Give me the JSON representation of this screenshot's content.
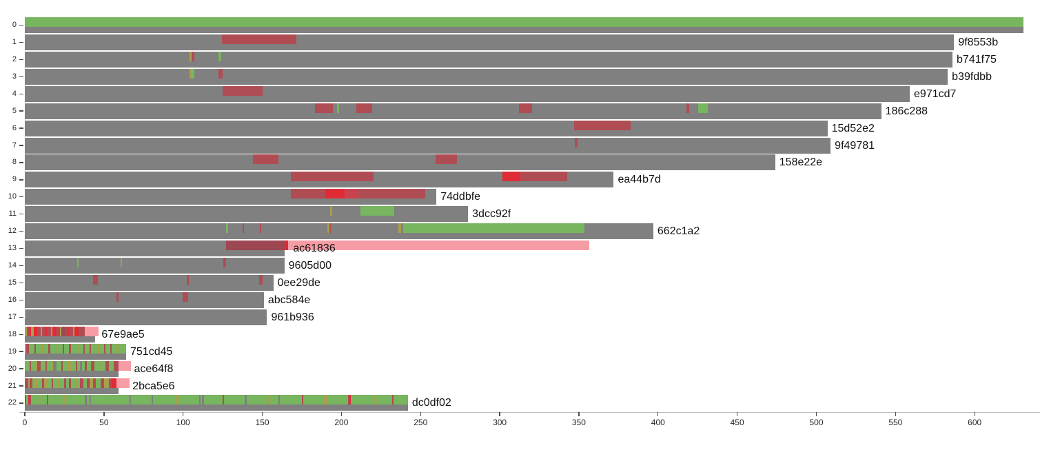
{
  "colors": {
    "gray": "#808080",
    "gray2": "#808080",
    "green": "#77b55f",
    "red": "#b04c53",
    "crimson": "#df2b36",
    "medred": "#c8434e",
    "darkred": "#9c4751",
    "pink": "#f69ca5",
    "olive": "#a89e4b",
    "label_text": "#111111",
    "tick_text": "#262626",
    "axis_line": "#bdbdbd",
    "tick_mark": "#4d4d4d"
  },
  "chart_data": {
    "type": "bar",
    "orientation": "horizontal",
    "title": "",
    "xlabel": "",
    "ylabel": "",
    "x_axis": {
      "ticks": [
        0,
        50,
        100,
        150,
        200,
        250,
        300,
        350,
        400,
        450,
        500,
        550,
        600
      ],
      "min": 0,
      "max": 641
    },
    "y_axis": {
      "tick_labels": [
        "0",
        "1",
        "2",
        "3",
        "4",
        "5",
        "6",
        "7",
        "8",
        "9",
        "10",
        "11",
        "12",
        "13",
        "14",
        "15",
        "16",
        "17",
        "18",
        "19",
        "20",
        "21",
        "22"
      ]
    },
    "legend": "none",
    "grid": false,
    "rows": [
      {
        "tick": "0",
        "commit": "",
        "length": 631,
        "segments": [
          [
            0,
            631,
            "green"
          ]
        ]
      },
      {
        "tick": "1",
        "commit": "9f8553b",
        "length": 587,
        "segments": [
          [
            124.5,
            171.5,
            "red"
          ]
        ]
      },
      {
        "tick": "2",
        "commit": "b741f75",
        "length": 586,
        "segments": [
          [
            104,
            105.5,
            "olive"
          ],
          [
            105.5,
            107,
            "red"
          ],
          [
            122.5,
            124,
            "green"
          ]
        ]
      },
      {
        "tick": "3",
        "commit": "b39fdbb",
        "length": 583,
        "segments": [
          [
            104,
            105.3,
            "olive"
          ],
          [
            105.3,
            107,
            "green"
          ],
          [
            122.5,
            125,
            "red"
          ]
        ]
      },
      {
        "tick": "4",
        "commit": "e971cd7",
        "length": 559,
        "segments": [
          [
            125,
            150,
            "red"
          ]
        ]
      },
      {
        "tick": "5",
        "commit": "186c288",
        "length": 541,
        "segments": [
          [
            183.5,
            194.5,
            "red"
          ],
          [
            197,
            198.5,
            "green"
          ],
          [
            209.5,
            219.5,
            "red"
          ],
          [
            312,
            320.5,
            "red"
          ],
          [
            418,
            419.5,
            "red"
          ],
          [
            425.5,
            431.5,
            "green"
          ]
        ]
      },
      {
        "tick": "6",
        "commit": "15d52e2",
        "length": 507,
        "segments": [
          [
            347,
            382.5,
            "red"
          ]
        ]
      },
      {
        "tick": "7",
        "commit": "9f49781",
        "length": 509,
        "segments": [
          [
            347.5,
            349,
            "red"
          ]
        ]
      },
      {
        "tick": "8",
        "commit": "158e22e",
        "length": 474,
        "segments": [
          [
            144,
            160,
            "red"
          ],
          [
            259.5,
            273,
            "red"
          ]
        ]
      },
      {
        "tick": "9",
        "commit": "ea44b7d",
        "length": 372,
        "segments": [
          [
            168,
            220.5,
            "red"
          ],
          [
            301.5,
            313,
            "crimson"
          ],
          [
            313,
            342.5,
            "red"
          ]
        ]
      },
      {
        "tick": "10",
        "commit": "74ddbfe",
        "length": 260,
        "segments": [
          [
            168,
            253,
            "red"
          ],
          [
            190,
            202,
            "crimson"
          ],
          [
            202,
            210,
            "medred"
          ]
        ]
      },
      {
        "tick": "11",
        "commit": "3dcc92f",
        "length": 280,
        "segments": [
          [
            193,
            194,
            "olive"
          ],
          [
            212,
            233.5,
            "green"
          ]
        ]
      },
      {
        "tick": "12",
        "commit": "662c1a2",
        "length": 397,
        "segments": [
          [
            127,
            128.5,
            "green"
          ],
          [
            137.5,
            138.5,
            "red"
          ],
          [
            148.5,
            149.5,
            "red"
          ],
          [
            191,
            192.5,
            "olive"
          ],
          [
            192.5,
            193.5,
            "red"
          ],
          [
            236,
            237.5,
            "olive"
          ],
          [
            239,
            353.5,
            "green"
          ]
        ]
      },
      {
        "tick": "13",
        "commit": "ac61836",
        "length": 164,
        "label_u": 169.5,
        "segments": [
          [
            127,
            164,
            "darkred"
          ],
          [
            164,
            166.5,
            "crimson"
          ],
          [
            166.5,
            356.5,
            "pink"
          ]
        ]
      },
      {
        "tick": "14",
        "commit": "9605d00",
        "length": 164,
        "segments": [
          [
            33,
            34,
            "green"
          ],
          [
            60.5,
            61.5,
            "green"
          ],
          [
            125.5,
            127,
            "red"
          ]
        ]
      },
      {
        "tick": "15",
        "commit": "0ee29de",
        "length": 157,
        "segments": [
          [
            43,
            46,
            "red"
          ],
          [
            102.5,
            103.5,
            "red"
          ],
          [
            148,
            150,
            "red"
          ]
        ]
      },
      {
        "tick": "16",
        "commit": "abc584e",
        "length": 151,
        "segments": [
          [
            58,
            59,
            "red"
          ],
          [
            99.5,
            103,
            "red"
          ]
        ]
      },
      {
        "tick": "17",
        "commit": "961b936",
        "length": 153,
        "segments": [
          [
            0,
            1,
            "green"
          ]
        ]
      },
      {
        "tick": "18",
        "commit": "67e9ae5",
        "length": 44.5,
        "label_u": 48.5,
        "segments": [
          [
            0,
            1.5,
            "olive"
          ],
          [
            1.5,
            3,
            "red"
          ],
          [
            3,
            4,
            "crimson"
          ],
          [
            4,
            5.5,
            "olive"
          ],
          [
            5.5,
            8,
            "crimson"
          ],
          [
            8,
            10,
            "red"
          ],
          [
            10,
            11,
            "olive"
          ],
          [
            11,
            13,
            "red"
          ],
          [
            13,
            14,
            "crimson"
          ],
          [
            14,
            16.5,
            "red"
          ],
          [
            16.5,
            17.5,
            "olive"
          ],
          [
            17.5,
            20,
            "crimson"
          ],
          [
            20,
            22,
            "red"
          ],
          [
            22,
            23,
            "olive"
          ],
          [
            23,
            25.5,
            "darkred"
          ],
          [
            25.5,
            27,
            "red"
          ],
          [
            27,
            28,
            "crimson"
          ],
          [
            28,
            30.5,
            "red"
          ],
          [
            30.5,
            31.5,
            "olive"
          ],
          [
            31.5,
            34,
            "crimson"
          ],
          [
            34,
            38,
            "red"
          ],
          [
            38,
            46.5,
            "pink"
          ]
        ]
      },
      {
        "tick": "19",
        "commit": "751cd45",
        "length": 64,
        "segments": [
          [
            0,
            1,
            "olive"
          ],
          [
            1,
            2.5,
            "red"
          ],
          [
            2.5,
            6,
            "green"
          ],
          [
            6,
            7,
            "red"
          ],
          [
            7,
            11,
            "green"
          ],
          [
            11,
            12,
            "olive"
          ],
          [
            12,
            15,
            "green"
          ],
          [
            15,
            16,
            "red"
          ],
          [
            16,
            19,
            "green"
          ],
          [
            19,
            20,
            "olive"
          ],
          [
            20,
            24,
            "green"
          ],
          [
            24,
            25,
            "red"
          ],
          [
            25,
            28,
            "green"
          ],
          [
            28,
            29,
            "red"
          ],
          [
            29,
            33,
            "green"
          ],
          [
            33,
            34,
            "olive"
          ],
          [
            34,
            37,
            "green"
          ],
          [
            37,
            38,
            "red"
          ],
          [
            38,
            41,
            "green"
          ],
          [
            41,
            42,
            "red"
          ],
          [
            42,
            46,
            "green"
          ],
          [
            46,
            47,
            "olive"
          ],
          [
            47,
            50,
            "green"
          ],
          [
            50,
            51,
            "red"
          ],
          [
            51,
            54,
            "green"
          ],
          [
            54,
            55,
            "red"
          ],
          [
            55,
            58,
            "green"
          ],
          [
            58,
            59,
            "olive"
          ],
          [
            59,
            64,
            "green"
          ]
        ]
      },
      {
        "tick": "20",
        "commit": "ace64f8",
        "length": 59,
        "label_u": 69,
        "segments": [
          [
            0,
            3,
            "green"
          ],
          [
            3,
            4,
            "red"
          ],
          [
            4,
            7,
            "green"
          ],
          [
            7,
            8,
            "olive"
          ],
          [
            8,
            10,
            "red"
          ],
          [
            10,
            13,
            "green"
          ],
          [
            13,
            14,
            "red"
          ],
          [
            14,
            17,
            "green"
          ],
          [
            17,
            18,
            "olive"
          ],
          [
            20,
            23,
            "green"
          ],
          [
            23,
            24,
            "red"
          ],
          [
            24,
            27,
            "green"
          ],
          [
            27,
            29,
            "olive"
          ],
          [
            29,
            32,
            "green"
          ],
          [
            32,
            33,
            "red"
          ],
          [
            33,
            35,
            "green"
          ],
          [
            36,
            38,
            "green"
          ],
          [
            38,
            39,
            "red"
          ],
          [
            39,
            42,
            "green"
          ],
          [
            42,
            44,
            "red"
          ],
          [
            44,
            47,
            "green"
          ],
          [
            47,
            48,
            "olive"
          ],
          [
            48,
            51,
            "green"
          ],
          [
            51,
            53,
            "red"
          ],
          [
            53,
            56,
            "green"
          ],
          [
            56,
            59,
            "red"
          ],
          [
            59,
            67,
            "pink"
          ]
        ]
      },
      {
        "tick": "21",
        "commit": "2bca5e6",
        "length": 59,
        "label_u": 68,
        "segments": [
          [
            0,
            2,
            "red"
          ],
          [
            2,
            3,
            "olive"
          ],
          [
            3,
            5,
            "red"
          ],
          [
            5,
            6,
            "green"
          ],
          [
            6,
            8,
            "olive"
          ],
          [
            8,
            11,
            "green"
          ],
          [
            11,
            12,
            "red"
          ],
          [
            12,
            14,
            "olive"
          ],
          [
            14,
            17,
            "green"
          ],
          [
            17,
            18,
            "red"
          ],
          [
            18,
            21,
            "green"
          ],
          [
            21,
            22,
            "olive"
          ],
          [
            22,
            25,
            "green"
          ],
          [
            25,
            26,
            "red"
          ],
          [
            26,
            28,
            "green"
          ],
          [
            28,
            29,
            "red"
          ],
          [
            29,
            32,
            "green"
          ],
          [
            32,
            33,
            "olive"
          ],
          [
            33,
            35,
            "green"
          ],
          [
            35,
            37,
            "red"
          ],
          [
            37,
            39,
            "green"
          ],
          [
            39,
            41,
            "red"
          ],
          [
            41,
            43,
            "olive"
          ],
          [
            43,
            45,
            "red"
          ],
          [
            45,
            48,
            "green"
          ],
          [
            48,
            50,
            "red"
          ],
          [
            50,
            53,
            "olive"
          ],
          [
            53,
            55,
            "red"
          ],
          [
            55,
            58,
            "crimson"
          ],
          [
            58,
            66,
            "pink"
          ]
        ]
      },
      {
        "tick": "22",
        "commit": "dc0df02",
        "length": 242,
        "segments": [
          [
            0,
            1,
            "red"
          ],
          [
            1,
            2,
            "green"
          ],
          [
            2,
            3,
            "crimson"
          ],
          [
            3,
            4,
            "red"
          ],
          [
            4,
            9,
            "green"
          ],
          [
            9,
            10,
            "olive"
          ],
          [
            10,
            14,
            "green"
          ],
          [
            14,
            15,
            "red"
          ],
          [
            15,
            24,
            "green"
          ],
          [
            24,
            26,
            "olive"
          ],
          [
            26,
            38,
            "green"
          ],
          [
            38,
            39,
            "gray2"
          ],
          [
            39,
            41,
            "green"
          ],
          [
            41,
            42,
            "gray2"
          ],
          [
            42,
            53,
            "green"
          ],
          [
            53,
            54,
            "olive"
          ],
          [
            54,
            66,
            "green"
          ],
          [
            66,
            67,
            "gray2"
          ],
          [
            67,
            80,
            "green"
          ],
          [
            80,
            81,
            "gray2"
          ],
          [
            81,
            95,
            "green"
          ],
          [
            95,
            97,
            "olive"
          ],
          [
            97,
            110,
            "green"
          ],
          [
            110,
            111,
            "gray2"
          ],
          [
            111,
            112,
            "green"
          ],
          [
            112,
            113,
            "gray2"
          ],
          [
            113,
            125,
            "green"
          ],
          [
            125,
            126,
            "red"
          ],
          [
            126,
            139,
            "green"
          ],
          [
            139,
            140,
            "gray2"
          ],
          [
            140,
            153,
            "green"
          ],
          [
            153,
            155,
            "olive"
          ],
          [
            155,
            160,
            "green"
          ],
          [
            160,
            161,
            "gray2"
          ],
          [
            161,
            175,
            "green"
          ],
          [
            175,
            176,
            "red"
          ],
          [
            176,
            189,
            "green"
          ],
          [
            189,
            191,
            "olive"
          ],
          [
            191,
            204,
            "green"
          ],
          [
            204,
            205,
            "red"
          ],
          [
            205,
            206,
            "crimson"
          ],
          [
            206,
            220,
            "green"
          ],
          [
            220,
            222,
            "olive"
          ],
          [
            222,
            232,
            "green"
          ],
          [
            232,
            233,
            "red"
          ],
          [
            233,
            242,
            "green"
          ]
        ]
      }
    ]
  }
}
